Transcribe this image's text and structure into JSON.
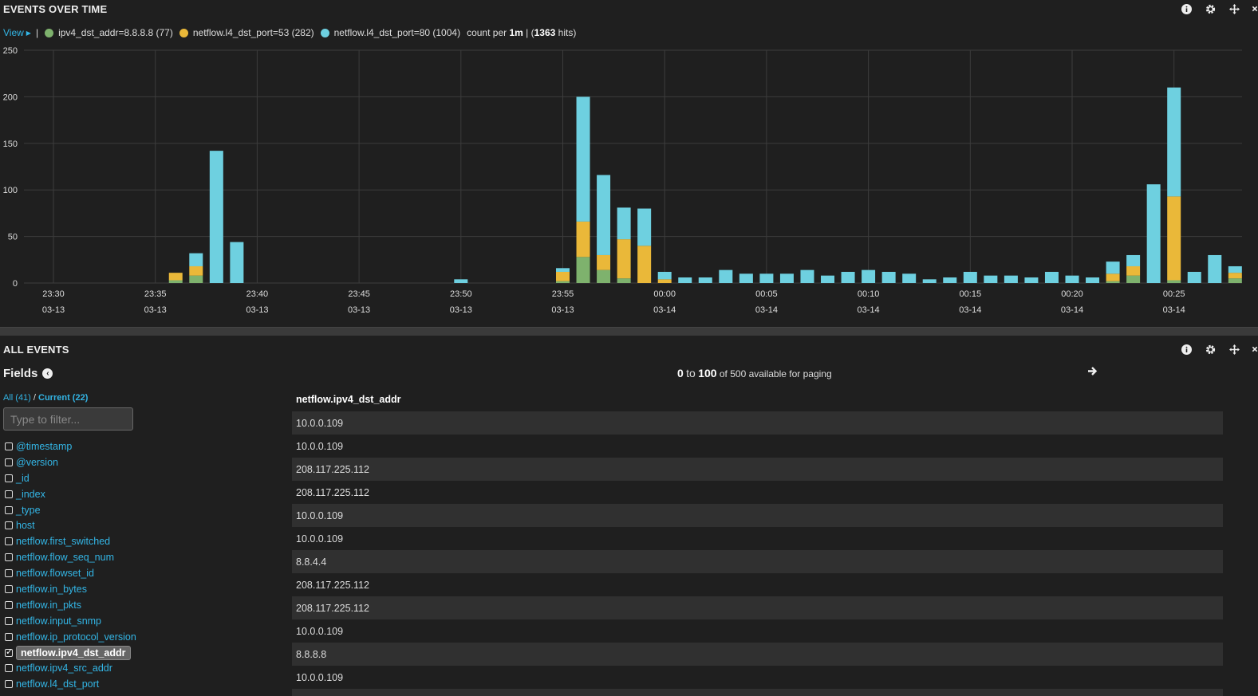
{
  "events_panel": {
    "title": "EVENTS OVER TIME",
    "tools": [
      "info-icon",
      "gear-icon",
      "move-icon",
      "close-icon"
    ]
  },
  "legend": {
    "view_label": "View",
    "series": [
      {
        "label": "ipv4_dst_addr=8.8.8.8 (77)",
        "color": "#7eb26d"
      },
      {
        "label": "netflow.l4_dst_port=53 (282)",
        "color": "#eab839"
      },
      {
        "label": "netflow.l4_dst_port=80 (1004)",
        "color": "#6ed0e0"
      }
    ],
    "count_prefix": "count per",
    "interval": "1m",
    "mid": "| (",
    "hits": "1363",
    "hits_suffix": "hits)"
  },
  "chart_data": {
    "type": "bar",
    "stacked": true,
    "y_ticks": [
      "250",
      "200",
      "150",
      "100",
      "50",
      "0"
    ],
    "ylim": [
      0,
      250
    ],
    "x_ticks": [
      {
        "time": "23:30",
        "date": "03-13"
      },
      {
        "time": "23:35",
        "date": "03-13"
      },
      {
        "time": "23:40",
        "date": "03-13"
      },
      {
        "time": "23:45",
        "date": "03-13"
      },
      {
        "time": "23:50",
        "date": "03-13"
      },
      {
        "time": "23:55",
        "date": "03-13"
      },
      {
        "time": "00:00",
        "date": "03-14"
      },
      {
        "time": "00:05",
        "date": "03-14"
      },
      {
        "time": "00:10",
        "date": "03-14"
      },
      {
        "time": "00:15",
        "date": "03-14"
      },
      {
        "time": "00:20",
        "date": "03-14"
      },
      {
        "time": "00:25",
        "date": "03-14"
      }
    ],
    "series_colors": [
      "#7eb26d",
      "#eab839",
      "#6ed0e0"
    ],
    "bars": [
      {
        "x": "23:36",
        "values": [
          3,
          8,
          0
        ]
      },
      {
        "x": "23:37",
        "values": [
          8,
          10,
          14
        ]
      },
      {
        "x": "23:38",
        "values": [
          0,
          0,
          142
        ]
      },
      {
        "x": "23:39",
        "values": [
          0,
          0,
          44
        ]
      },
      {
        "x": "23:50",
        "values": [
          0,
          0,
          4
        ]
      },
      {
        "x": "23:55",
        "values": [
          2,
          10,
          4
        ]
      },
      {
        "x": "23:56",
        "values": [
          28,
          38,
          134
        ]
      },
      {
        "x": "23:57",
        "values": [
          14,
          16,
          86
        ]
      },
      {
        "x": "23:58",
        "values": [
          5,
          42,
          34
        ]
      },
      {
        "x": "23:59",
        "values": [
          0,
          40,
          40
        ]
      },
      {
        "x": "00:00",
        "values": [
          0,
          4,
          8
        ]
      },
      {
        "x": "00:01",
        "values": [
          0,
          0,
          6
        ]
      },
      {
        "x": "00:02",
        "values": [
          0,
          0,
          6
        ]
      },
      {
        "x": "00:03",
        "values": [
          0,
          0,
          14
        ]
      },
      {
        "x": "00:04",
        "values": [
          0,
          0,
          10
        ]
      },
      {
        "x": "00:05",
        "values": [
          0,
          0,
          10
        ]
      },
      {
        "x": "00:06",
        "values": [
          0,
          0,
          10
        ]
      },
      {
        "x": "00:07",
        "values": [
          0,
          0,
          14
        ]
      },
      {
        "x": "00:08",
        "values": [
          0,
          0,
          8
        ]
      },
      {
        "x": "00:09",
        "values": [
          0,
          0,
          12
        ]
      },
      {
        "x": "00:10",
        "values": [
          0,
          0,
          14
        ]
      },
      {
        "x": "00:11",
        "values": [
          0,
          0,
          12
        ]
      },
      {
        "x": "00:12",
        "values": [
          0,
          0,
          10
        ]
      },
      {
        "x": "00:13",
        "values": [
          0,
          0,
          4
        ]
      },
      {
        "x": "00:14",
        "values": [
          0,
          0,
          6
        ]
      },
      {
        "x": "00:15",
        "values": [
          0,
          0,
          12
        ]
      },
      {
        "x": "00:16",
        "values": [
          0,
          0,
          8
        ]
      },
      {
        "x": "00:17",
        "values": [
          0,
          0,
          8
        ]
      },
      {
        "x": "00:18",
        "values": [
          0,
          0,
          6
        ]
      },
      {
        "x": "00:19",
        "values": [
          0,
          0,
          12
        ]
      },
      {
        "x": "00:20",
        "values": [
          0,
          0,
          8
        ]
      },
      {
        "x": "00:21",
        "values": [
          0,
          0,
          6
        ]
      },
      {
        "x": "00:22",
        "values": [
          2,
          8,
          13
        ]
      },
      {
        "x": "00:23",
        "values": [
          8,
          10,
          12
        ]
      },
      {
        "x": "00:24",
        "values": [
          0,
          0,
          106
        ]
      },
      {
        "x": "00:25",
        "values": [
          3,
          90,
          117
        ]
      },
      {
        "x": "00:26",
        "values": [
          0,
          0,
          12
        ]
      },
      {
        "x": "00:27",
        "values": [
          0,
          0,
          30
        ]
      },
      {
        "x": "00:28",
        "values": [
          5,
          6,
          7
        ]
      }
    ]
  },
  "all_events_panel": {
    "title": "ALL EVENTS",
    "tools": [
      "info-icon",
      "gear-icon",
      "move-icon",
      "close-icon"
    ]
  },
  "fields": {
    "heading": "Fields",
    "all_label": "All (41)",
    "slash": " / ",
    "current_label": "Current (22)",
    "filter_placeholder": "Type to filter...",
    "items": [
      {
        "name": "@timestamp",
        "checked": false
      },
      {
        "name": "@version",
        "checked": false
      },
      {
        "name": "_id",
        "checked": false
      },
      {
        "name": "_index",
        "checked": false
      },
      {
        "name": "_type",
        "checked": false
      },
      {
        "name": "host",
        "checked": false
      },
      {
        "name": "netflow.first_switched",
        "checked": false
      },
      {
        "name": "netflow.flow_seq_num",
        "checked": false
      },
      {
        "name": "netflow.flowset_id",
        "checked": false
      },
      {
        "name": "netflow.in_bytes",
        "checked": false
      },
      {
        "name": "netflow.in_pkts",
        "checked": false
      },
      {
        "name": "netflow.input_snmp",
        "checked": false
      },
      {
        "name": "netflow.ip_protocol_version",
        "checked": false
      },
      {
        "name": "netflow.ipv4_dst_addr",
        "checked": true
      },
      {
        "name": "netflow.ipv4_src_addr",
        "checked": false
      },
      {
        "name": "netflow.l4_dst_port",
        "checked": false
      }
    ]
  },
  "paging": {
    "from": "0",
    "to_word": "to",
    "to": "100",
    "suffix": "of 500 available for paging"
  },
  "table": {
    "column": "netflow.ipv4_dst_addr",
    "rows": [
      "10.0.0.109",
      "10.0.0.109",
      "208.117.225.112",
      "208.117.225.112",
      "10.0.0.109",
      "10.0.0.109",
      "8.8.4.4",
      "208.117.225.112",
      "208.117.225.112",
      "10.0.0.109",
      "8.8.8.8",
      "10.0.0.109",
      ""
    ]
  }
}
